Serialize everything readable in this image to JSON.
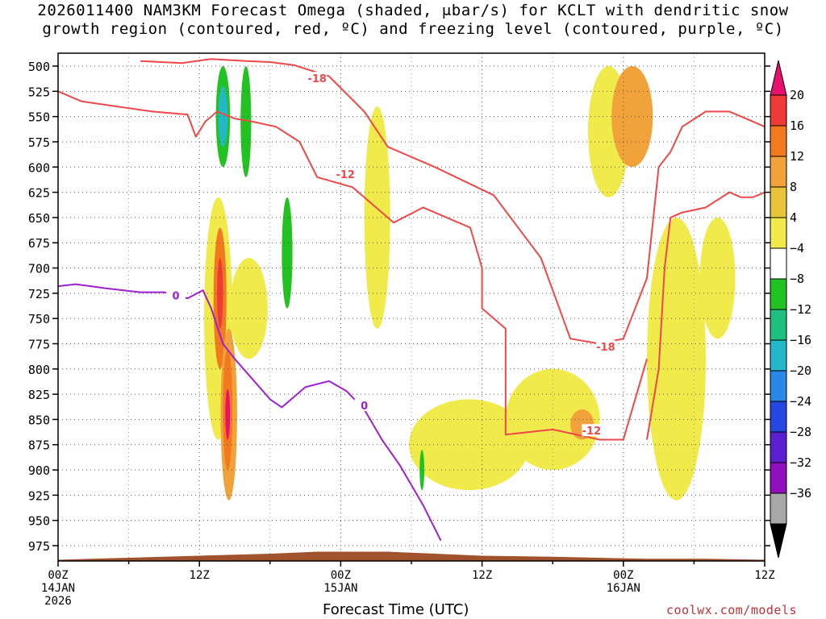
{
  "title_line1": "2026011400 NAM3KM Forecast Omega (shaded, μbar/s) for KCLT with dendritic snow",
  "title_line2": "growth region (contoured, red, ºC) and freezing level (contoured, purple, ºC)",
  "xlabel": "Forecast Time (UTC)",
  "credit": "coolwx.com/models",
  "chart_data": {
    "type": "heatmap",
    "y_axis": {
      "quantity": "pressure (hPa)",
      "ticks": [
        500,
        525,
        550,
        575,
        600,
        625,
        650,
        675,
        700,
        725,
        750,
        775,
        800,
        825,
        850,
        875,
        900,
        925,
        950,
        975
      ],
      "range": [
        500,
        990
      ],
      "inverted": true
    },
    "x_axis": {
      "range_hours": [
        0,
        60
      ],
      "ticks": [
        {
          "hour": 0,
          "line1": "00Z",
          "line2": "14JAN",
          "line3": "2026"
        },
        {
          "hour": 12,
          "line1": "12Z",
          "line2": "",
          "line3": ""
        },
        {
          "hour": 24,
          "line1": "00Z",
          "line2": "15JAN",
          "line3": ""
        },
        {
          "hour": 36,
          "line1": "12Z",
          "line2": "",
          "line3": ""
        },
        {
          "hour": 48,
          "line1": "00Z",
          "line2": "16JAN",
          "line3": ""
        },
        {
          "hour": 60,
          "line1": "12Z",
          "line2": "",
          "line3": ""
        }
      ]
    },
    "colorbar": {
      "labels": [
        "20",
        "16",
        "12",
        "8",
        "4",
        "−4",
        "−8",
        "−12",
        "−16",
        "−20",
        "−24",
        "−28",
        "−32",
        "−36"
      ],
      "colors": [
        "#e8116e",
        "#ef3b35",
        "#f27a1e",
        "#f2a23a",
        "#e7c43a",
        "#f0ea4a",
        "#ffffff",
        "#22c222",
        "#1fbf7f",
        "#22b8c8",
        "#2a88e8",
        "#2448e0",
        "#5a20d0",
        "#9010c0",
        "#a8a8a8",
        "#000000"
      ]
    },
    "grid": true,
    "terrain_color": "#a0522d",
    "omega_regions": [
      {
        "value": 6,
        "hours": [
          12.4,
          14.8
        ],
        "p": [
          630,
          870
        ]
      },
      {
        "value": 12,
        "hours": [
          13.2,
          14.3
        ],
        "p": [
          660,
          800
        ]
      },
      {
        "value": 16,
        "hours": [
          13.5,
          14.0
        ],
        "p": [
          690,
          760
        ]
      },
      {
        "value": 8,
        "hours": [
          13.8,
          15.2
        ],
        "p": [
          760,
          930
        ]
      },
      {
        "value": 14,
        "hours": [
          14.0,
          14.8
        ],
        "p": [
          780,
          900
        ]
      },
      {
        "value": 20,
        "hours": [
          14.2,
          14.6
        ],
        "p": [
          820,
          870
        ]
      },
      {
        "value": 5,
        "hours": [
          14.6,
          17.8
        ],
        "p": [
          690,
          790
        ]
      },
      {
        "value": 5,
        "hours": [
          26.0,
          28.2
        ],
        "p": [
          540,
          760
        ]
      },
      {
        "value": 5,
        "hours": [
          29.8,
          40.0
        ],
        "p": [
          830,
          920
        ]
      },
      {
        "value": 5,
        "hours": [
          38.0,
          46.0
        ],
        "p": [
          800,
          900
        ]
      },
      {
        "value": 10,
        "hours": [
          43.5,
          45.5
        ],
        "p": [
          840,
          870
        ]
      },
      {
        "value": 5,
        "hours": [
          45.0,
          48.5
        ],
        "p": [
          500,
          630
        ]
      },
      {
        "value": 10,
        "hours": [
          47.0,
          50.5
        ],
        "p": [
          500,
          600
        ]
      },
      {
        "value": 5,
        "hours": [
          50.0,
          55.0
        ],
        "p": [
          650,
          930
        ]
      },
      {
        "value": 5,
        "hours": [
          54.5,
          57.5
        ],
        "p": [
          650,
          770
        ]
      },
      {
        "value": -6,
        "hours": [
          13.4,
          14.6
        ],
        "p": [
          500,
          600
        ]
      },
      {
        "value": -13,
        "hours": [
          13.6,
          14.4
        ],
        "p": [
          520,
          580
        ]
      },
      {
        "value": -6,
        "hours": [
          15.5,
          16.4
        ],
        "p": [
          500,
          610
        ]
      },
      {
        "value": -6,
        "hours": [
          19.0,
          19.9
        ],
        "p": [
          630,
          740
        ]
      },
      {
        "value": -6,
        "hours": [
          30.7,
          31.1
        ],
        "p": [
          880,
          920
        ]
      }
    ],
    "contours": [
      {
        "label": "-18",
        "color": "#f04848",
        "x": [
          7,
          10.5,
          13,
          16,
          18,
          20,
          23,
          26,
          28,
          32,
          37,
          41,
          43.5,
          46
        ],
        "y": [
          495,
          497,
          493,
          495,
          496,
          499,
          510,
          545,
          580,
          600,
          628,
          690,
          770,
          775
        ]
      },
      {
        "label": "-12",
        "color": "#f04848",
        "x": [
          0,
          2,
          5,
          8,
          11,
          11.7,
          12.5,
          13.5,
          15,
          16.5,
          18.5,
          20.5,
          22,
          25,
          27,
          28.5,
          31,
          35,
          36,
          36,
          38,
          38,
          42,
          46,
          48,
          50
        ],
        "y": [
          525,
          535,
          540,
          545,
          548,
          570,
          555,
          545,
          552,
          555,
          560,
          575,
          610,
          620,
          640,
          655,
          640,
          660,
          700,
          740,
          760,
          865,
          860,
          870,
          870,
          790
        ]
      },
      {
        "label": "-18b",
        "color": "#f04848",
        "x": [
          46,
          48,
          50,
          51,
          52,
          53,
          55,
          57,
          58,
          60
        ],
        "y": [
          775,
          770,
          710,
          600,
          585,
          560,
          545,
          545,
          550,
          560
        ]
      },
      {
        "label": "-12b",
        "color": "#f04848",
        "x": [
          50,
          51,
          51.5,
          52,
          53,
          55,
          57,
          58,
          59,
          60
        ],
        "y": [
          870,
          800,
          700,
          650,
          645,
          640,
          625,
          630,
          630,
          625
        ]
      },
      {
        "label": "0",
        "color": "#a020d0",
        "x": [
          0,
          1.5,
          4,
          7,
          9,
          11,
          12.3,
          13,
          14,
          15,
          16.5,
          18,
          19,
          21,
          23,
          24.5,
          26,
          27.5,
          29,
          31,
          32.5
        ],
        "y": [
          718,
          716,
          720,
          724,
          724,
          730,
          722,
          740,
          775,
          790,
          810,
          830,
          838,
          818,
          812,
          822,
          840,
          870,
          895,
          935,
          970
        ]
      }
    ],
    "contour_labels": [
      {
        "text": "-18",
        "hour": 22.0,
        "p": 512,
        "color": "#f04848"
      },
      {
        "text": "-12",
        "hour": 24.4,
        "p": 607,
        "color": "#f04848"
      },
      {
        "text": "-18",
        "hour": 46.5,
        "p": 778,
        "color": "#f04848"
      },
      {
        "text": "-12",
        "hour": 45.3,
        "p": 861,
        "color": "#f04848"
      },
      {
        "text": "0",
        "hour": 10.0,
        "p": 727,
        "color": "#a020d0"
      },
      {
        "text": "0",
        "hour": 26.0,
        "p": 836,
        "color": "#a020d0"
      }
    ]
  }
}
